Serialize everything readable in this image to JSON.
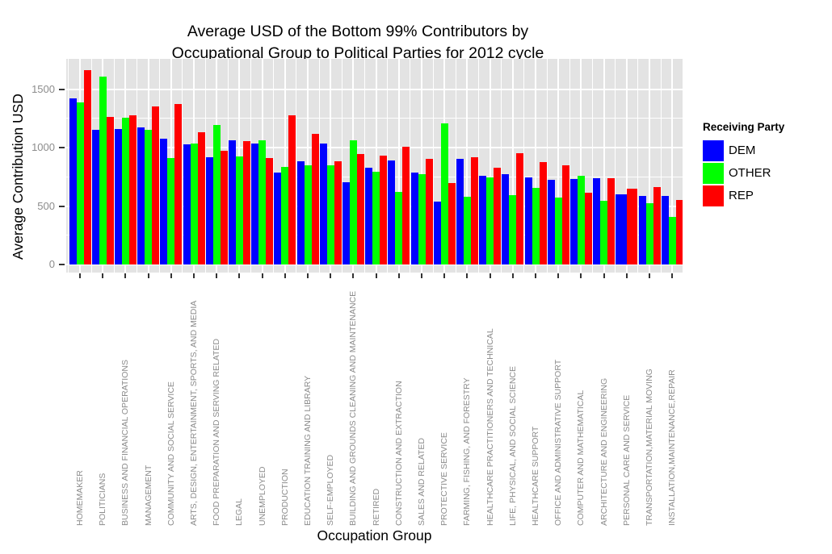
{
  "title": {
    "line1": "Average USD of the Bottom 99% Contributors by",
    "line2": "Occupational Group to Political Parties for 2012 cycle"
  },
  "y_axis": {
    "title": "Average Contribution USD"
  },
  "x_axis": {
    "title": "Occupation Group"
  },
  "legend": {
    "title": "Receiving Party",
    "entries": [
      {
        "label": "DEM",
        "color": "#0000ff"
      },
      {
        "label": "OTHER",
        "color": "#00ff00"
      },
      {
        "label": "REP",
        "color": "#ff0000"
      }
    ]
  },
  "colors": {
    "panel_background": "#e3e3e3",
    "gridline": "#ffffff",
    "axis_text": "#8c8c8c",
    "tick_mark": "#333333",
    "dem": "#0000ff",
    "other": "#00ff00",
    "rep": "#ff0000"
  },
  "chart_data": {
    "type": "bar",
    "title": "Average USD of the Bottom 99% Contributors by Occupational Group to Political Parties for 2012 cycle",
    "xlabel": "Occupation Group",
    "ylabel": "Average Contribution USD",
    "ylim": [
      0,
      1760
    ],
    "yticks": [
      0,
      500,
      1000,
      1500
    ],
    "yticks_minor": [
      250,
      750,
      1250
    ],
    "grid": true,
    "legend_position": "right",
    "categories": [
      "HOMEMAKER",
      "POLITICIANS",
      "BUSINESS AND FINANCIAL OPERATIONS",
      "MANAGEMENT",
      "COMMUNITY AND SOCIAL SERVICE",
      "ARTS, DESIGN, ENTERTAINMENT, SPORTS, AND MEDIA",
      "FOOD PREPARATION AND SERVING RELATED",
      "LEGAL",
      "UNEMPLOYED",
      "PRODUCTION",
      "EDUCATION TRAINING AND LIBRARY",
      "SELF-EMPLOYED",
      "BUILDING AND GROUNDS CLEANING AND MAINTENANCE",
      "RETIRED",
      "CONSTRUCTION AND EXTRACTION",
      "SALES AND RELATED",
      "PROTECTIVE SERVICE",
      "FARMING, FISHING, AND FORESTRY",
      "HEALTHCARE PRACTITIONERS AND TECHNICAL",
      "LIFE, PHYSICAL, AND SOCIAL SCIENCE",
      "HEALTHCARE SUPPORT",
      "OFFICE AND ADMINISTRATIVE SUPPORT",
      "COMPUTER AND MATHEMATICAL",
      "ARCHITECTURE AND ENGINEERING",
      "PERSONAL CARE AND SERVICE",
      "TRANSPORTATION,MATERIAL MOVING",
      "INSTALLATION,MAINTENANCE,REPAIR"
    ],
    "series": [
      {
        "name": "DEM",
        "color": "#0000ff",
        "values": [
          1420,
          1150,
          1160,
          1170,
          1075,
          1025,
          920,
          1065,
          1035,
          790,
          885,
          1035,
          705,
          830,
          890,
          785,
          535,
          905,
          760,
          770,
          745,
          725,
          730,
          735,
          600,
          590,
          585
        ]
      },
      {
        "name": "OTHER",
        "color": "#00ff00",
        "values": [
          1385,
          1610,
          1258,
          1155,
          910,
          1035,
          1195,
          925,
          1060,
          835,
          850,
          850,
          1060,
          795,
          620,
          775,
          1205,
          580,
          745,
          595,
          655,
          570,
          760,
          545,
          null,
          525,
          410
        ]
      },
      {
        "name": "REP",
        "color": "#ff0000",
        "values": [
          1660,
          1260,
          1275,
          1350,
          1370,
          1135,
          975,
          1055,
          910,
          1280,
          1120,
          885,
          945,
          930,
          1005,
          905,
          695,
          915,
          825,
          950,
          875,
          850,
          615,
          740,
          650,
          665,
          550
        ]
      }
    ]
  }
}
